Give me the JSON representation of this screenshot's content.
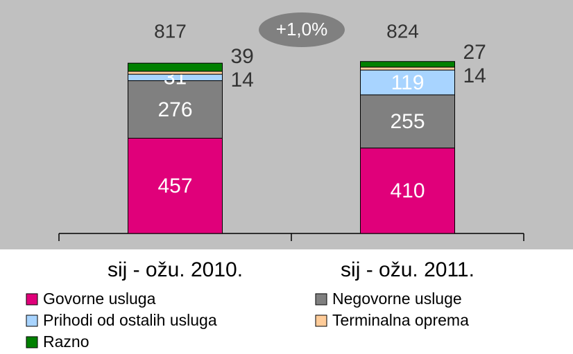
{
  "chart_data": {
    "type": "stacked_bar",
    "categories": [
      "sij - ožu. 2010.",
      "sij - ožu. 2011."
    ],
    "series": [
      {
        "name": "Govorne usluga",
        "color": "#e0007a",
        "values": [
          457,
          410
        ]
      },
      {
        "name": "Negovorne usluge",
        "color": "#808080",
        "values": [
          276,
          255
        ]
      },
      {
        "name": "Prihodi od ostalih usluga",
        "color": "#a8d4ff",
        "values": [
          31,
          119
        ]
      },
      {
        "name": "Terminalna oprema",
        "color": "#ffcc99",
        "values": [
          14,
          14
        ]
      },
      {
        "name": "Razno",
        "color": "#008000",
        "values": [
          39,
          27
        ]
      }
    ],
    "totals": [
      817,
      824
    ],
    "annotation": "+1,0%",
    "ylim": [
      0,
      1120
    ]
  }
}
